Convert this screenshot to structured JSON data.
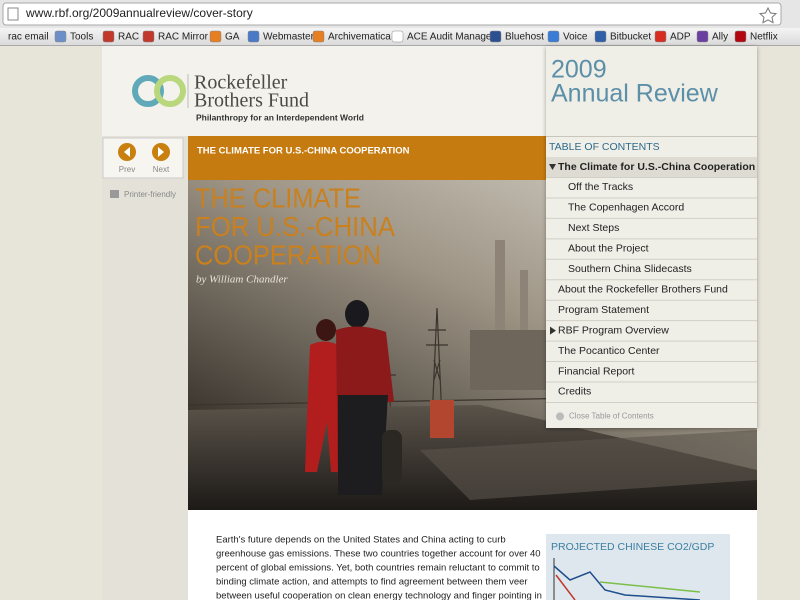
{
  "browser": {
    "url": "www.rbf.org/2009annualreview/cover-story",
    "bookmarks": [
      "rac email",
      "Tools",
      "RAC",
      "RAC Mirror",
      "GA",
      "Webmaster",
      "Archivematica",
      "ACE Audit Manager",
      "Bluehost",
      "Voice",
      "Bitbucket",
      "ADP",
      "Ally",
      "Netflix"
    ]
  },
  "header": {
    "name_line1": "Rockefeller",
    "name_line2": "Brothers Fund",
    "tagline": "Philanthropy for an Interdependent World"
  },
  "nav": {
    "prev": "Prev",
    "next": "Next",
    "printer": "Printer-friendly"
  },
  "banner": "THE CLIMATE FOR U.S.-CHINA COOPERATION",
  "hero": {
    "title_lines": [
      "THE CLIMATE",
      "FOR U.S.-CHINA",
      "COOPERATION"
    ],
    "byline": "by William Chandler"
  },
  "annual_review": {
    "year": "2009",
    "label": "Annual Review"
  },
  "toc": {
    "heading": "TABLE OF CONTENTS",
    "items": [
      {
        "label": "The Climate for U.S.-China Cooperation",
        "level": 1,
        "toggle": "open",
        "current": true
      },
      {
        "label": "Off the Tracks",
        "level": 2
      },
      {
        "label": "The Copenhagen Accord",
        "level": 2
      },
      {
        "label": "Next Steps",
        "level": 2
      },
      {
        "label": "About the Project",
        "level": 2
      },
      {
        "label": "Southern China Slidecasts",
        "level": 2
      },
      {
        "label": "About the Rockefeller Brothers Fund",
        "level": 1
      },
      {
        "label": "Program Statement",
        "level": 1
      },
      {
        "label": "RBF Program Overview",
        "level": 1,
        "toggle": "closed"
      },
      {
        "label": "The Pocantico Center",
        "level": 1
      },
      {
        "label": "Financial Report",
        "level": 1
      },
      {
        "label": "Credits",
        "level": 1
      }
    ],
    "close": "Close Table of Contents"
  },
  "article": {
    "lines": [
      "Earth's future depends on the United States and China acting to curb",
      "greenhouse gas emissions. These two countries together account for over 40",
      "percent of global emissions. Yet, both countries remain reluctant to commit to",
      "binding climate action, and attempts to find agreement between them veer",
      "between useful cooperation on clean energy technology and finger pointing in"
    ]
  },
  "sidebar": {
    "title": "PROJECTED CHINESE CO2/GDP"
  }
}
